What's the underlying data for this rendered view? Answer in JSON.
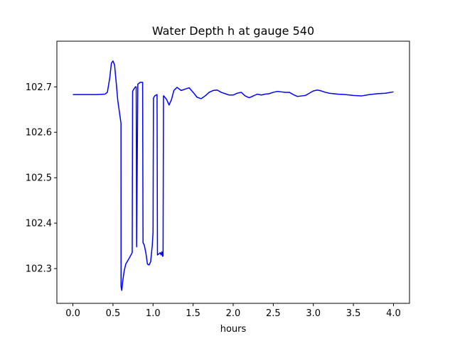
{
  "chart_data": {
    "type": "line",
    "title": "Water Depth h at gauge 540",
    "xlabel": "hours",
    "ylabel": "",
    "xlim": [
      -0.2,
      4.2
    ],
    "ylim": [
      102.2235,
      102.8005
    ],
    "xticks": [
      0.0,
      0.5,
      1.0,
      1.5,
      2.0,
      2.5,
      3.0,
      3.5,
      4.0
    ],
    "xtick_labels": [
      "0.0",
      "0.5",
      "1.0",
      "1.5",
      "2.0",
      "2.5",
      "3.0",
      "3.5",
      "4.0"
    ],
    "yticks": [
      102.3,
      102.4,
      102.5,
      102.6,
      102.7
    ],
    "ytick_labels": [
      "102.3",
      "102.4",
      "102.5",
      "102.6",
      "102.7"
    ],
    "grid": false,
    "series": [
      {
        "color": "#0000ff",
        "x": [
          0.0,
          0.1,
          0.2,
          0.3,
          0.4,
          0.43,
          0.46,
          0.48,
          0.5,
          0.52,
          0.54,
          0.56,
          0.58,
          0.6,
          0.601,
          0.61,
          0.62,
          0.64,
          0.66,
          0.7,
          0.74,
          0.745,
          0.76,
          0.78,
          0.79,
          0.795,
          0.81,
          0.84,
          0.87,
          0.875,
          0.89,
          0.91,
          0.93,
          0.95,
          0.97,
          0.99,
          1.0,
          1.005,
          1.02,
          1.05,
          1.055,
          1.07,
          1.09,
          1.1,
          1.11,
          1.12,
          1.125,
          1.13,
          1.135,
          1.17,
          1.2,
          1.23,
          1.26,
          1.3,
          1.35,
          1.4,
          1.45,
          1.5,
          1.55,
          1.6,
          1.65,
          1.7,
          1.75,
          1.8,
          1.85,
          1.9,
          1.95,
          2.0,
          2.05,
          2.1,
          2.15,
          2.2,
          2.25,
          2.3,
          2.35,
          2.4,
          2.45,
          2.5,
          2.55,
          2.6,
          2.65,
          2.7,
          2.75,
          2.8,
          2.85,
          2.9,
          2.95,
          3.0,
          3.05,
          3.1,
          3.15,
          3.2,
          3.3,
          3.4,
          3.5,
          3.6,
          3.7,
          3.8,
          3.9,
          4.0
        ],
        "y": [
          102.683,
          102.683,
          102.683,
          102.683,
          102.684,
          102.688,
          102.72,
          102.752,
          102.757,
          102.748,
          102.71,
          102.67,
          102.645,
          102.62,
          102.26,
          102.252,
          102.27,
          102.295,
          102.31,
          102.322,
          102.335,
          102.69,
          102.695,
          102.7,
          102.7,
          102.348,
          102.706,
          102.71,
          102.71,
          102.357,
          102.352,
          102.335,
          102.31,
          102.308,
          102.315,
          102.35,
          102.38,
          102.675,
          102.68,
          102.683,
          102.33,
          102.332,
          102.335,
          102.33,
          102.337,
          102.327,
          102.328,
          102.68,
          102.68,
          102.672,
          102.66,
          102.672,
          102.692,
          102.699,
          102.692,
          102.695,
          102.698,
          102.688,
          102.677,
          102.674,
          102.68,
          102.688,
          102.692,
          102.693,
          102.688,
          102.685,
          102.682,
          102.682,
          102.686,
          102.688,
          102.68,
          102.676,
          102.68,
          102.684,
          102.682,
          102.684,
          102.685,
          102.688,
          102.69,
          102.689,
          102.688,
          102.688,
          102.683,
          102.679,
          102.68,
          102.681,
          102.686,
          102.691,
          102.693,
          102.691,
          102.688,
          102.686,
          102.684,
          102.683,
          102.681,
          102.68,
          102.683,
          102.685,
          102.686,
          102.689
        ]
      }
    ]
  }
}
